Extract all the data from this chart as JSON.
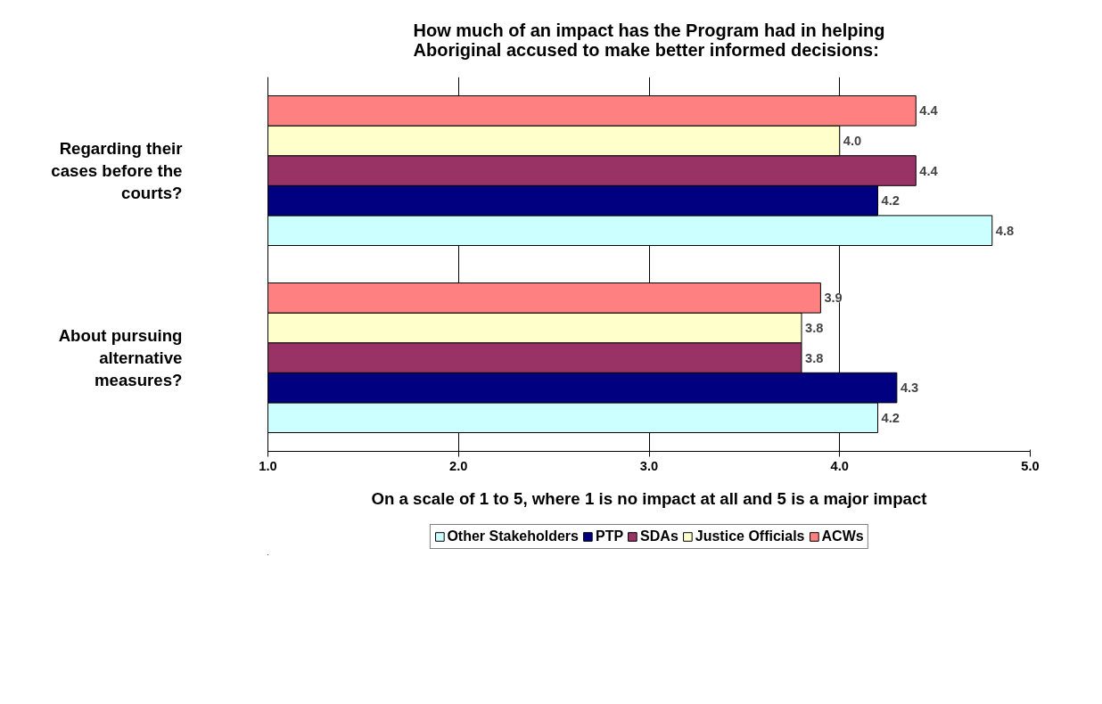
{
  "chart_data": {
    "type": "bar",
    "orientation": "horizontal",
    "title": "How much of an impact has the Program had in helping\nAboriginal accused to make better informed decisions:",
    "xlabel": "On a scale of 1 to 5, where 1 is no impact at all and 5 is a major impact",
    "categories": [
      "Regarding their cases before the courts?",
      "About pursuing alternative measures?"
    ],
    "xlim": [
      1,
      5
    ],
    "xticks": [
      {
        "value": 1,
        "label": "1.0"
      },
      {
        "value": 2,
        "label": "2.0"
      },
      {
        "value": 3,
        "label": "3.0"
      },
      {
        "value": 4,
        "label": "4.0"
      },
      {
        "value": 5,
        "label": "5.0"
      }
    ],
    "grid": "x",
    "legend": "bottom",
    "series": [
      {
        "name": "Other Stakeholders",
        "color": "#ccffff",
        "values": [
          4.8,
          4.2
        ],
        "value_labels": [
          "4.8",
          "4.2"
        ]
      },
      {
        "name": "PTP",
        "color": "#000080",
        "values": [
          4.2,
          4.3
        ],
        "value_labels": [
          "4.2",
          "4.3"
        ]
      },
      {
        "name": "SDAs",
        "color": "#993366",
        "values": [
          4.4,
          3.8
        ],
        "value_labels": [
          "4.4",
          "3.8"
        ]
      },
      {
        "name": "Justice Officials",
        "color": "#ffffcc",
        "values": [
          4.0,
          3.8
        ],
        "value_labels": [
          "4.0",
          "3.8"
        ]
      },
      {
        "name": "ACWs",
        "color": "#ff8080",
        "values": [
          4.4,
          3.9
        ],
        "value_labels": [
          "4.4",
          "3.9"
        ]
      }
    ]
  }
}
